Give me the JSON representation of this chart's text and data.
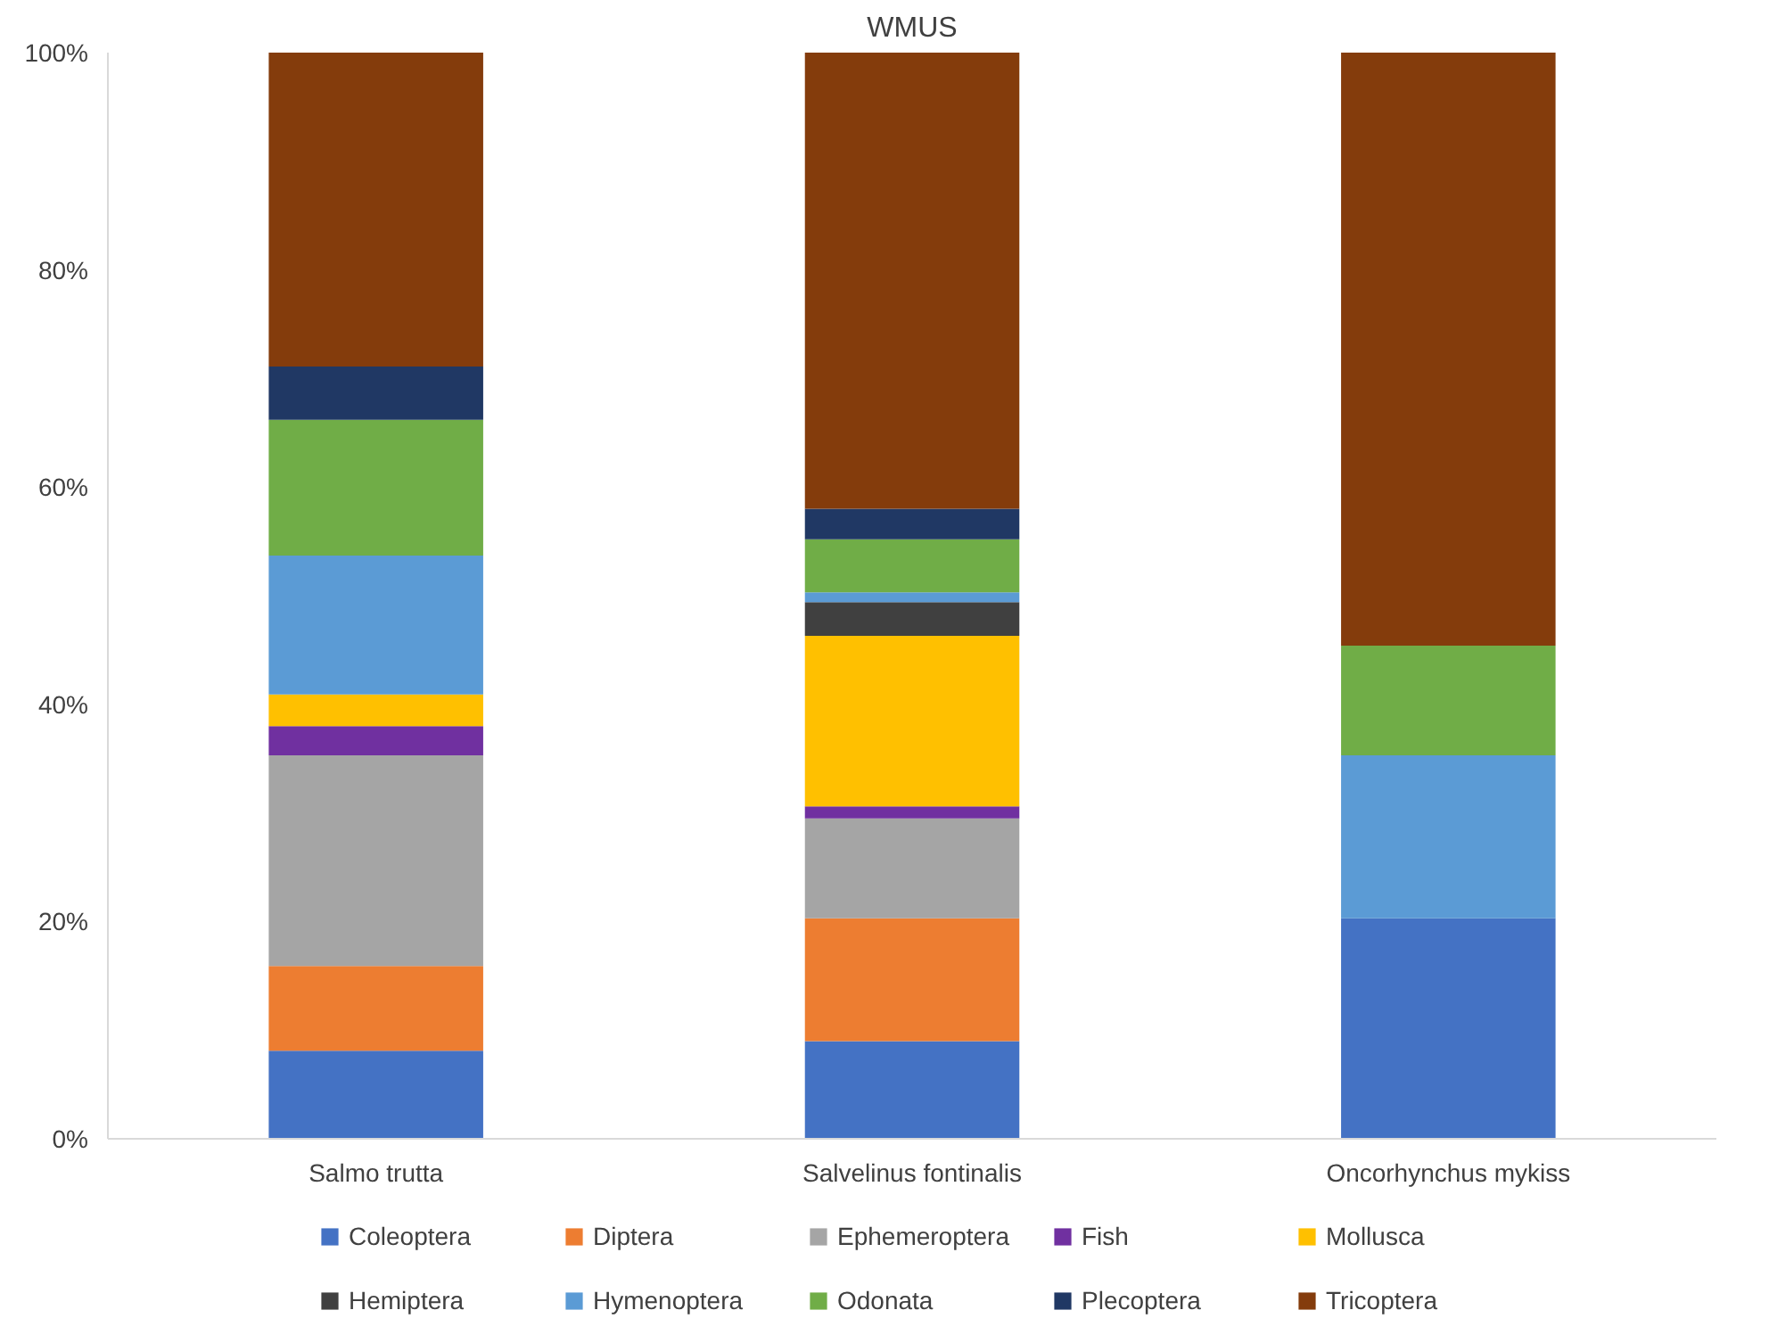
{
  "chart_data": {
    "type": "bar",
    "stacked": true,
    "title": "WMUS",
    "categories": [
      "Salmo trutta",
      "Salvelinus fontinalis",
      "Oncorhynchus mykiss"
    ],
    "series": [
      {
        "name": "Coleoptera",
        "color": "#4472c4",
        "values": [
          8.1,
          9.0,
          20.3
        ]
      },
      {
        "name": "Diptera",
        "color": "#ed7d31",
        "values": [
          7.8,
          11.3,
          0
        ]
      },
      {
        "name": "Ephemeroptera",
        "color": "#a5a5a5",
        "values": [
          19.4,
          9.2,
          0
        ]
      },
      {
        "name": "Fish",
        "color": "#7030a0",
        "values": [
          2.7,
          1.1,
          0
        ]
      },
      {
        "name": "Mollusca",
        "color": "#ffc000",
        "values": [
          2.9,
          15.7,
          0
        ]
      },
      {
        "name": "Hemiptera",
        "color": "#404040",
        "values": [
          0,
          3.1,
          0
        ]
      },
      {
        "name": "Hymenoptera",
        "color": "#5b9bd5",
        "values": [
          12.8,
          0.9,
          15.0
        ]
      },
      {
        "name": "Odonata",
        "color": "#70ad47",
        "values": [
          12.5,
          4.9,
          10.1
        ]
      },
      {
        "name": "Plecoptera",
        "color": "#203864",
        "values": [
          4.9,
          2.8,
          0
        ]
      },
      {
        "name": "Tricoptera",
        "color": "#843c0c",
        "values": [
          28.9,
          42.0,
          54.6
        ]
      }
    ],
    "ylim": [
      0,
      100
    ],
    "yticks": [
      {
        "value": 0,
        "label": "0%"
      },
      {
        "value": 20,
        "label": "20%"
      },
      {
        "value": 40,
        "label": "40%"
      },
      {
        "value": 60,
        "label": "60%"
      },
      {
        "value": 80,
        "label": "80%"
      },
      {
        "value": 100,
        "label": "100%"
      }
    ],
    "grid": false,
    "legend": "bottom"
  }
}
